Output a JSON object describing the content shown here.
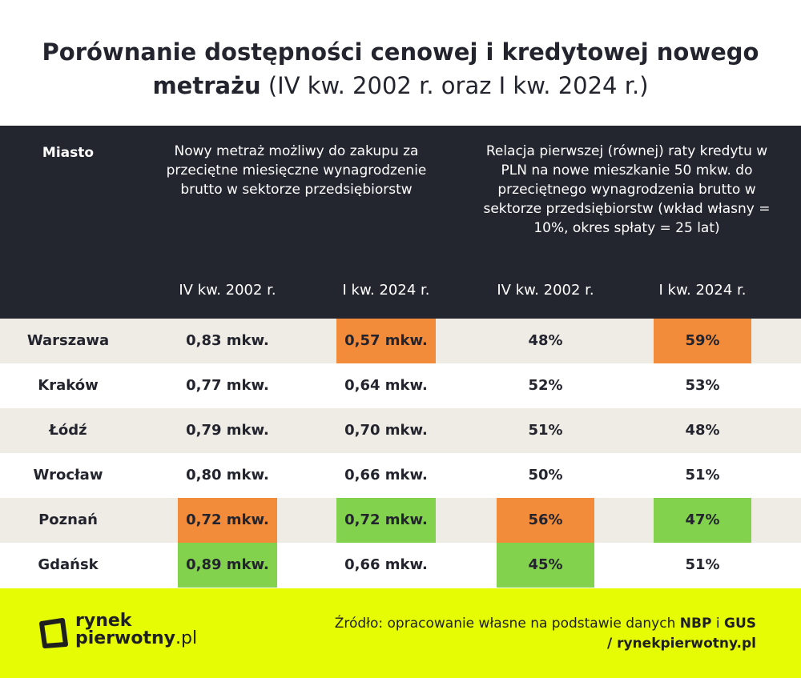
{
  "header": {
    "title_bold": "Porównanie dostępności cenowej i kredytowej nowego metrażu",
    "title_regular": "(IV kw. 2002 r. oraz I kw. 2024 r.)"
  },
  "table": {
    "city_header": "Miasto",
    "group_headers": [
      "Nowy metraż możliwy do zakupu za przeciętne miesięczne wynagrodzenie brutto w sektorze przedsiębiorstw",
      "Relacja pierwszej (równej) raty kredytu w PLN na nowe mieszkanie 50 mkw. do przeciętnego wynagrodzenia brutto w sektorze przedsiębiorstw (wkład własny = 10%, okres spłaty = 25 lat)"
    ],
    "sub_headers": [
      "IV kw. 2002 r.",
      "I kw. 2024 r.",
      "IV kw. 2002 r.",
      "I kw. 2024 r."
    ],
    "highlight_colors": {
      "orange": "#f28c3a",
      "green": "#82d24e"
    },
    "rows": [
      {
        "cells": [
          "Warszawa",
          "0,83 mkw.",
          "0,57 mkw.",
          "48%",
          "59%"
        ],
        "highlights": [
          null,
          null,
          "orange",
          null,
          "orange"
        ]
      },
      {
        "cells": [
          "Kraków",
          "0,77 mkw.",
          "0,64 mkw.",
          "52%",
          "53%"
        ],
        "highlights": [
          null,
          null,
          null,
          null,
          null
        ]
      },
      {
        "cells": [
          "Łódź",
          "0,79 mkw.",
          "0,70 mkw.",
          "51%",
          "48%"
        ],
        "highlights": [
          null,
          null,
          null,
          null,
          null
        ]
      },
      {
        "cells": [
          "Wrocław",
          "0,80 mkw.",
          "0,66 mkw.",
          "50%",
          "51%"
        ],
        "highlights": [
          null,
          null,
          null,
          null,
          null
        ]
      },
      {
        "cells": [
          "Poznań",
          "0,72 mkw.",
          "0,72 mkw.",
          "56%",
          "47%"
        ],
        "highlights": [
          null,
          "orange",
          "green",
          "orange",
          "green"
        ]
      },
      {
        "cells": [
          "Gdańsk",
          "0,89 mkw.",
          "0,66 mkw.",
          "45%",
          "51%"
        ],
        "highlights": [
          null,
          "green",
          null,
          "green",
          null
        ]
      }
    ]
  },
  "footer": {
    "logo": [
      "rynek",
      "pierwotny",
      ".pl"
    ],
    "source_prefix": "Źródło: opracowanie własne na podstawie danych",
    "source_nbp": "NBP",
    "source_and": "i",
    "source_gus": "GUS",
    "source_site": "/ rynekpierwotny.pl"
  }
}
